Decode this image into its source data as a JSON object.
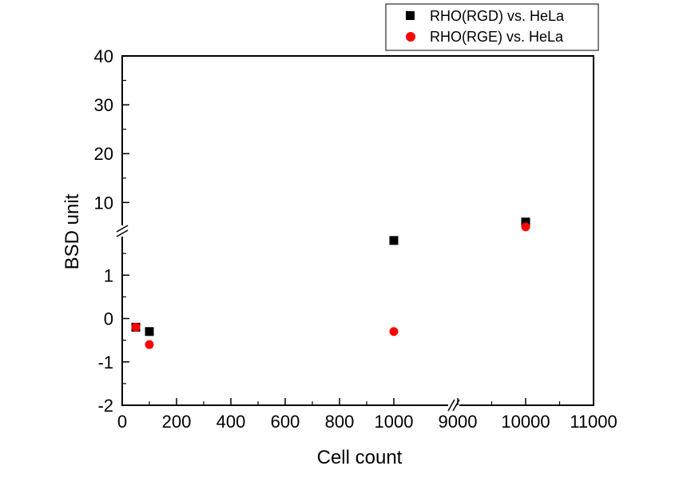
{
  "chart_data": {
    "type": "scatter",
    "xlabel": "Cell count",
    "ylabel": "BSD unit",
    "x_axis_segments": [
      {
        "range": [
          0,
          1000
        ],
        "ticks": [
          0,
          200,
          400,
          600,
          800,
          1000
        ],
        "tick_labels": [
          "0",
          "200",
          "400",
          "600",
          "800",
          "1000"
        ]
      },
      {
        "range": [
          9000,
          11000
        ],
        "ticks": [
          9000,
          10000,
          11000
        ],
        "tick_labels": [
          "9000",
          "10000",
          "11000"
        ]
      }
    ],
    "x_break_between": [
      1000,
      9000
    ],
    "y_axis_segments": [
      {
        "range": [
          -2,
          2
        ],
        "ticks": [
          -2,
          -1,
          0,
          1
        ],
        "tick_labels": [
          "-2",
          "-1",
          "0",
          "1"
        ]
      },
      {
        "range": [
          4,
          40
        ],
        "ticks": [
          10,
          20,
          30,
          40
        ],
        "tick_labels": [
          "10",
          "20",
          "30",
          "40"
        ]
      }
    ],
    "y_break_between": [
      2,
      4
    ],
    "legend_position": "top-right, outside plot",
    "series": [
      {
        "name": "RHO(RGD) vs. HeLa",
        "marker": "square",
        "color": "#000000",
        "points": [
          {
            "x": 50,
            "y": -0.2
          },
          {
            "x": 100,
            "y": -0.3
          },
          {
            "x": 1000,
            "y": 1.8
          },
          {
            "x": 10000,
            "y": 6
          }
        ]
      },
      {
        "name": "RHO(RGE) vs. HeLa",
        "marker": "circle",
        "color": "#ff0000",
        "points": [
          {
            "x": 50,
            "y": -0.2
          },
          {
            "x": 100,
            "y": -0.6
          },
          {
            "x": 1000,
            "y": -0.3
          },
          {
            "x": 10000,
            "y": 5
          }
        ]
      }
    ]
  }
}
